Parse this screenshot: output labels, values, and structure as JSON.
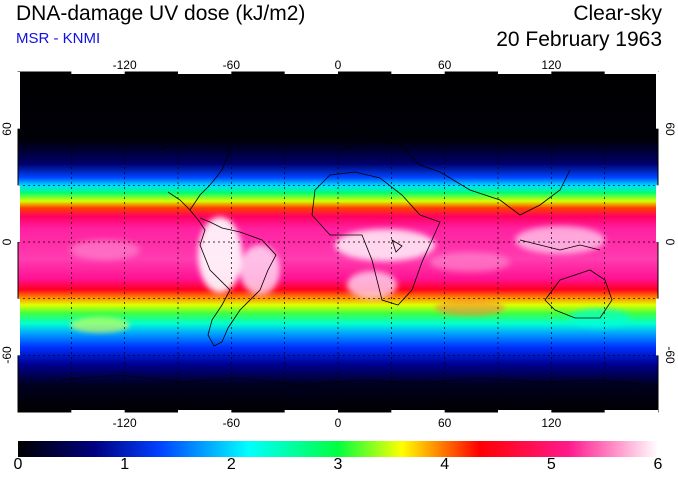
{
  "header": {
    "title": "DNA-damage UV dose (kJ/m2)",
    "subtitle": "MSR - KNMI",
    "sky_condition": "Clear-sky",
    "date": "20 February 1963"
  },
  "map": {
    "lon_ticks": [
      "-120",
      "-60",
      "0",
      "60",
      "120"
    ],
    "lat_ticks": [
      "60",
      "0",
      "-60"
    ],
    "lon_values": [
      -120,
      -60,
      0,
      60,
      120
    ],
    "lat_values": [
      60,
      0,
      -60
    ],
    "lon_range": [
      -180,
      180
    ],
    "lat_range": [
      -90,
      90
    ],
    "gridlines": true
  },
  "colorbar": {
    "labels": [
      "0",
      "1",
      "2",
      "3",
      "4",
      "5",
      "6"
    ],
    "range": [
      0,
      6
    ],
    "colors": [
      "#000000",
      "#000080",
      "#0040ff",
      "#00ffff",
      "#00ff40",
      "#ffff00",
      "#ff0000",
      "#ff1a8c",
      "#ffffff"
    ]
  }
}
